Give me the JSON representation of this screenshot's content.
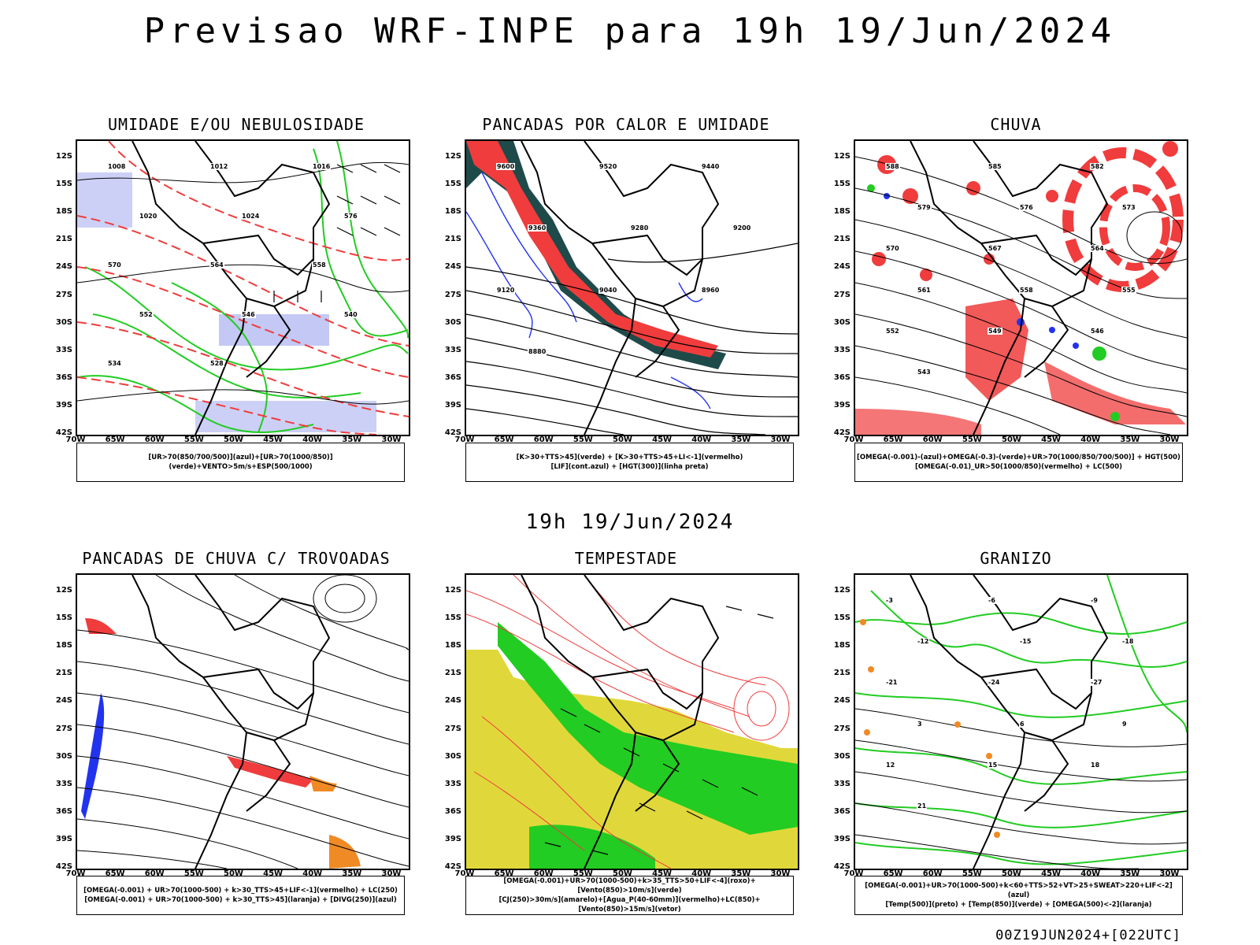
{
  "title": "Previsao WRF-INPE  para 19h 19/Jun/2024",
  "mid_time": "19h 19/Jun/2024",
  "footer": "00Z19JUN2024+[022UTC]",
  "lat_ticks": [
    "12S",
    "15S",
    "18S",
    "21S",
    "24S",
    "27S",
    "30S",
    "33S",
    "36S",
    "39S",
    "42S"
  ],
  "lon_ticks": [
    "70W",
    "65W",
    "60W",
    "55W",
    "50W",
    "45W",
    "40W",
    "35W",
    "30W"
  ],
  "panels": [
    {
      "title": "UMIDADE E/OU NEBULOSIDADE",
      "legend": [
        "[UR>70(850/700/500)](azul)+[UR>70(1000/850)](verde)+VENTO>5m/s+ESP(500/1000)"
      ],
      "labels": [
        "1008",
        "1012",
        "1016",
        "1020",
        "1024",
        "576",
        "570",
        "564",
        "558",
        "552",
        "546",
        "540",
        "534",
        "528"
      ]
    },
    {
      "title": "PANCADAS POR CALOR E UMIDADE",
      "legend": [
        "[K>30+TTS>45](verde) + [K>30+TTS>45+LI<-1](vermelho)",
        "[LIF](cont.azul) + [HGT(300)](linha preta)"
      ],
      "labels": [
        "9600",
        "9520",
        "9440",
        "9360",
        "9280",
        "9200",
        "9120",
        "9040",
        "8960",
        "8880"
      ]
    },
    {
      "title": "CHUVA",
      "legend": [
        "[OMEGA(-0.001)-(azul)+OMEGA(-0.3)-(verde)+UR>70(1000/850/700/500)] + HGT(500)",
        "[OMEGA(-0.01)_UR>50(1000/850)(vermelho) + LC(500)"
      ],
      "labels": [
        "588",
        "585",
        "582",
        "579",
        "576",
        "573",
        "570",
        "567",
        "564",
        "561",
        "558",
        "555",
        "552",
        "549",
        "546",
        "543"
      ]
    },
    {
      "title": "PANCADAS DE CHUVA C/ TROVOADAS",
      "legend": [
        "[OMEGA(-0.001) + UR>70(1000-500) + k>30_TTS>45+LIF<-1](vermelho) + LC(250)",
        "[OMEGA(-0.001) + UR>70(1000-500) + k>30_TTS>45](laranja) + [DIVG(250)](azul)"
      ],
      "labels": []
    },
    {
      "title": "TEMPESTADE",
      "legend": [
        "[OMEGA(-0.001)+UR>70(1000-500)+k>35_TTS>50+LIF<-4](roxo)+[Vento(850)>10m/s](verde)",
        "[CJ(250)>30m/s](amarelo)+[Agua_P(40-60mm)](vermelho)+LC(850)+[Vento(850)>15m/s](vetor)"
      ],
      "labels": []
    },
    {
      "title": "GRANIZO",
      "legend": [
        "[OMEGA(-0.001)+UR>70(1000-500)+k<60+TTS>52+VT>25+SWEAT>220+LIF<-2](azul)",
        "[Temp(500)](preto) + [Temp(850)](verde) + [OMEGA(500)<-2](laranja)"
      ],
      "labels": [
        "-3",
        "-6",
        "-9",
        "-12",
        "-15",
        "-18",
        "-21",
        "-24",
        "-27",
        "3",
        "6",
        "9",
        "12",
        "15",
        "18",
        "21"
      ]
    }
  ],
  "colors": {
    "green": "#22cc22",
    "red": "#f03c3c",
    "blue": "#2233ee",
    "lightblue": "#aab0f0",
    "teal": "#1f4a4a",
    "orange": "#f08a24",
    "yellow": "#e0d83a",
    "black": "#000000"
  }
}
